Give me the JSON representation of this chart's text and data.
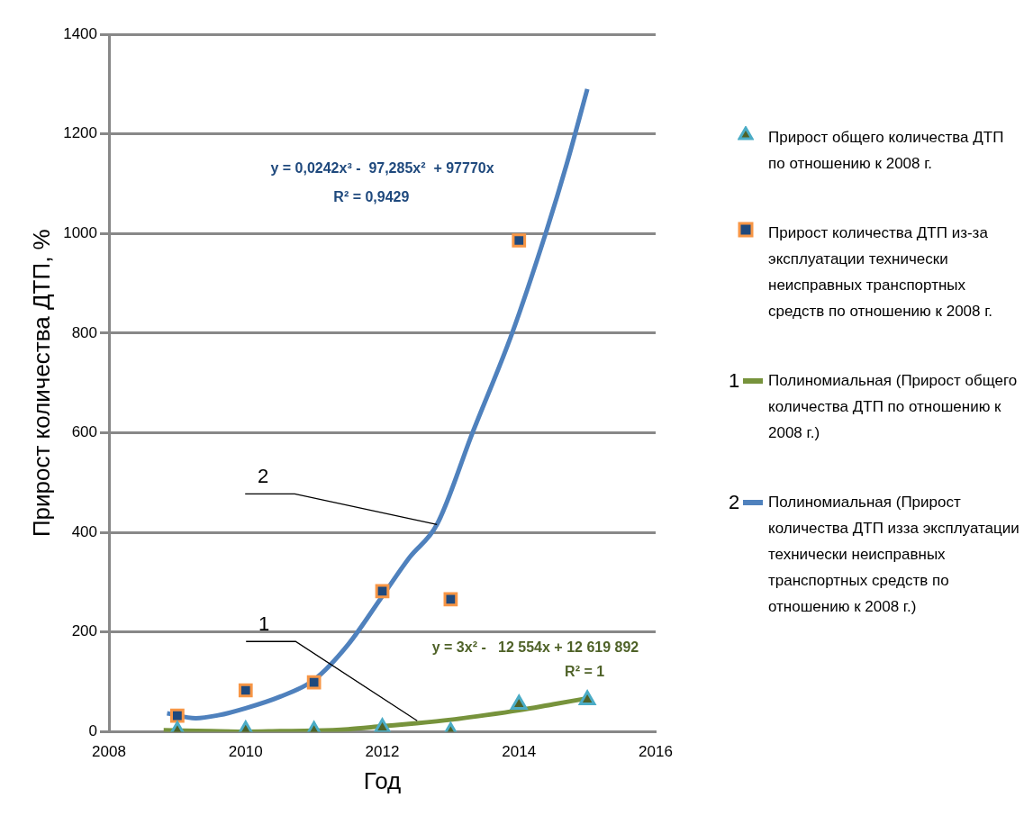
{
  "chart_data": {
    "type": "scatter",
    "xlabel": "Год",
    "ylabel": "Прирост количества ДТП, %",
    "xlim": [
      2008,
      2016
    ],
    "xticks": [
      2008,
      2010,
      2012,
      2014,
      2016
    ],
    "ylim": [
      0,
      1400
    ],
    "yticks": [
      0,
      200,
      400,
      600,
      800,
      1000,
      1200,
      1400
    ],
    "grid": "y",
    "legend": "right",
    "series": [
      {
        "name": "Прирост общего количества ДТП по отношению к 2008 г.",
        "marker": "triangle",
        "color": "#4bacc6",
        "x": [
          2009,
          2010,
          2011,
          2012,
          2013,
          2014,
          2015
        ],
        "values": [
          2,
          3,
          2,
          8,
          0,
          55,
          64
        ]
      },
      {
        "name": "Прирост количества ДТП из-за эксплуатации технически неисправных транспортных средств по отношению к 2008 г.",
        "marker": "square",
        "color": "#f79646",
        "x": [
          2009,
          2010,
          2011,
          2012,
          2013,
          2014
        ],
        "values": [
          32,
          83,
          99,
          282,
          266,
          986
        ]
      },
      {
        "name": "Полиномиальная (Прирост общего количества ДТП по отношению к 2008 г.)",
        "type": "line",
        "marker": "none",
        "color": "#77933c",
        "x": [
          2008.8,
          2009.5,
          2010,
          2010.5,
          2011,
          2011.5,
          2012,
          2012.5,
          2013,
          2013.5,
          2014,
          2014.5,
          2015
        ],
        "values": [
          3,
          1,
          0,
          1,
          2,
          5,
          11,
          17,
          24,
          33,
          43,
          55,
          67
        ]
      },
      {
        "name": "Полиномиальная (Прирост количества ДТП изза эксплуатации технически неисправных транспортных средств по отношению к 2008 г.)",
        "type": "line",
        "marker": "none",
        "color": "#4f81bd",
        "x": [
          2008.85,
          2009.27,
          2009.6,
          2010,
          2010.5,
          2011,
          2011.5,
          2012,
          2012.4,
          2012.8,
          2013.32,
          2013.9,
          2014.39,
          2014.7,
          2015
        ],
        "values": [
          37,
          27,
          33,
          47,
          70,
          104,
          175,
          272,
          350,
          416,
          600,
          800,
          1000,
          1140,
          1290
        ]
      }
    ],
    "annotations": [
      {
        "text": "1",
        "x": 2012.51,
        "y": 22
      },
      {
        "text": "2",
        "x": 2012.8,
        "y": 416
      },
      "y = 0,0242x³ -  97,285x²  + 97770x",
      "R² = 0,9429",
      "y = 3x² -   12 554x + 12 619 892",
      "R² = 1"
    ]
  }
}
